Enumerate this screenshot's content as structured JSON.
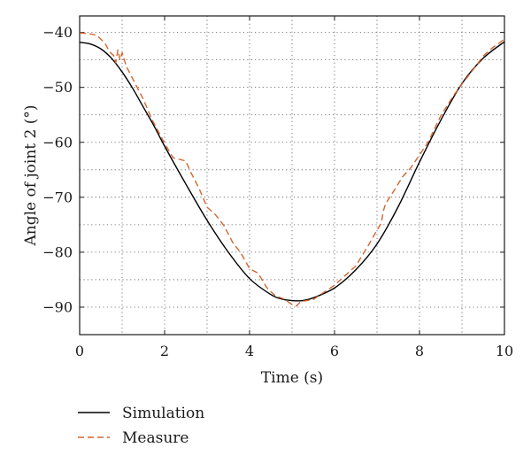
{
  "chart_data": {
    "type": "line",
    "title": "",
    "xlabel": "Time (s)",
    "ylabel": "Angle of joint 2 (°)",
    "xlim": [
      0,
      10
    ],
    "ylim": [
      -95,
      -37
    ],
    "xticks": [
      0,
      2,
      4,
      6,
      8,
      10
    ],
    "yticks": [
      -90,
      -80,
      -70,
      -60,
      -50,
      -40
    ],
    "x_minor_grid": [
      1,
      3,
      5,
      7,
      9
    ],
    "y_minor_grid": [
      -85,
      -75,
      -65,
      -55,
      -45
    ],
    "grid": true,
    "grid_style": "dotted",
    "legend_position": "below-left",
    "series": [
      {
        "name": "Simulation",
        "color": "#000000",
        "dash": "solid",
        "x": [
          0,
          0.25,
          0.5,
          0.75,
          1.0,
          1.25,
          1.5,
          1.75,
          2.0,
          2.5,
          3.0,
          3.5,
          4.0,
          4.5,
          4.75,
          5.0,
          5.25,
          5.5,
          6.0,
          6.5,
          7.0,
          7.5,
          8.0,
          8.5,
          9.0,
          9.5,
          10.0
        ],
        "y": [
          -41.8,
          -42.1,
          -43.0,
          -44.7,
          -47.2,
          -50.2,
          -53.6,
          -57.0,
          -60.7,
          -67.6,
          -74.2,
          -80.0,
          -84.8,
          -87.7,
          -88.5,
          -88.8,
          -88.8,
          -88.3,
          -86.5,
          -83.2,
          -78.5,
          -71.7,
          -63.6,
          -56.0,
          -49.3,
          -44.7,
          -41.7
        ]
      },
      {
        "name": "Measure",
        "color": "#d4652f",
        "dash": "dashed",
        "x": [
          0,
          0.2,
          0.4,
          0.6,
          0.7,
          0.8,
          0.85,
          0.9,
          0.95,
          1.0,
          1.1,
          1.3,
          1.5,
          1.7,
          2.0,
          2.2,
          2.5,
          2.6,
          2.8,
          3.0,
          3.2,
          3.4,
          3.6,
          3.8,
          4.0,
          4.2,
          4.4,
          4.6,
          4.8,
          5.0,
          5.1,
          5.2,
          5.5,
          6.0,
          6.5,
          6.8,
          7.0,
          7.1,
          7.15,
          7.2,
          7.4,
          7.6,
          7.8,
          8.0,
          8.2,
          8.5,
          8.8,
          9.0,
          9.3,
          9.5,
          9.7,
          9.9,
          10.0
        ],
        "y": [
          -40.1,
          -40.2,
          -40.5,
          -42.0,
          -43.5,
          -44.2,
          -45.5,
          -43.2,
          -45.0,
          -43.7,
          -46.2,
          -49.2,
          -52.2,
          -55.8,
          -60.2,
          -62.8,
          -63.4,
          -65.2,
          -68.2,
          -71.8,
          -73.2,
          -75.2,
          -78.2,
          -80.2,
          -83.0,
          -83.8,
          -86.4,
          -87.9,
          -88.5,
          -89.5,
          -89.8,
          -89.0,
          -88.6,
          -86.0,
          -82.5,
          -78.7,
          -76.0,
          -74.7,
          -72.5,
          -71.2,
          -68.8,
          -66.3,
          -64.6,
          -62.3,
          -60.0,
          -55.2,
          -51.5,
          -49.4,
          -46.4,
          -44.3,
          -42.9,
          -41.8,
          -41.2
        ]
      }
    ]
  }
}
